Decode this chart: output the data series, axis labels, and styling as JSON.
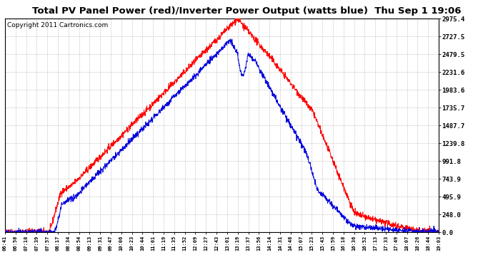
{
  "title": "Total PV Panel Power (red)/Inverter Power Output (watts blue)  Thu Sep 1 19:06",
  "copyright": "Copyright 2011 Cartronics.com",
  "yticks": [
    0.0,
    248.0,
    495.9,
    743.9,
    991.8,
    1239.8,
    1487.7,
    1735.7,
    1983.6,
    2231.6,
    2479.5,
    2727.5,
    2975.4
  ],
  "ymax": 2975.4,
  "xtick_labels": [
    "06:41",
    "06:58",
    "07:18",
    "07:39",
    "07:57",
    "08:17",
    "08:34",
    "08:54",
    "09:13",
    "09:31",
    "09:47",
    "10:06",
    "10:23",
    "10:44",
    "11:01",
    "11:19",
    "11:35",
    "11:52",
    "12:09",
    "12:27",
    "12:43",
    "13:01",
    "13:19",
    "13:37",
    "13:56",
    "14:14",
    "14:31",
    "14:48",
    "15:07",
    "15:23",
    "15:43",
    "15:59",
    "16:18",
    "16:36",
    "16:52",
    "17:13",
    "17:33",
    "17:49",
    "18:07",
    "18:26",
    "18:44",
    "19:03"
  ],
  "bg_color": "#ffffff",
  "grid_color": "#bbbbbb",
  "red_color": "#ff0000",
  "blue_color": "#0000dd",
  "title_fontsize": 9.5,
  "copyright_fontsize": 6.5
}
